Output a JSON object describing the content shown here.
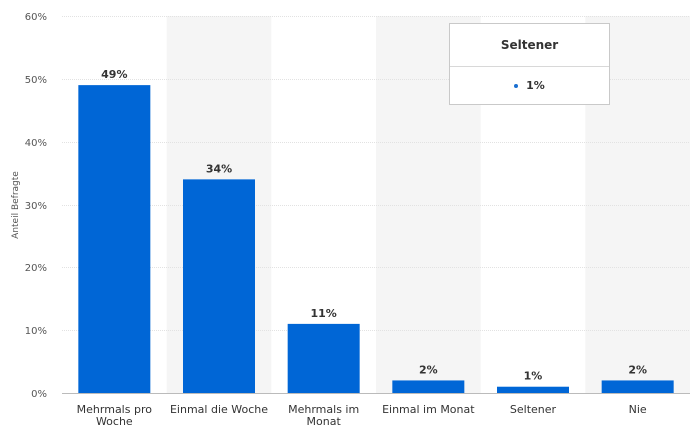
{
  "chart_data": {
    "type": "bar",
    "title": "",
    "xlabel": "",
    "ylabel": "Anteil Befragte",
    "categories": [
      "Mehrmals pro Woche",
      "Einmal die Woche",
      "Mehrmals im Monat",
      "Einmal im Monat",
      "Seltener",
      "Nie"
    ],
    "values": [
      49,
      34,
      11,
      2,
      1,
      2
    ],
    "value_labels": [
      "49%",
      "34%",
      "11%",
      "2%",
      "1%",
      "2%"
    ],
    "ylim": [
      0,
      60
    ],
    "y_ticks": [
      0,
      10,
      20,
      30,
      40,
      50,
      60
    ],
    "y_tick_labels": [
      "0%",
      "10%",
      "20%",
      "30%",
      "40%",
      "50%",
      "60%"
    ],
    "grid": true,
    "bar_color": "#0066d6",
    "alt_band_color": "#f5f5f5",
    "tooltip": {
      "title": "Seltener",
      "value": "1%"
    }
  }
}
